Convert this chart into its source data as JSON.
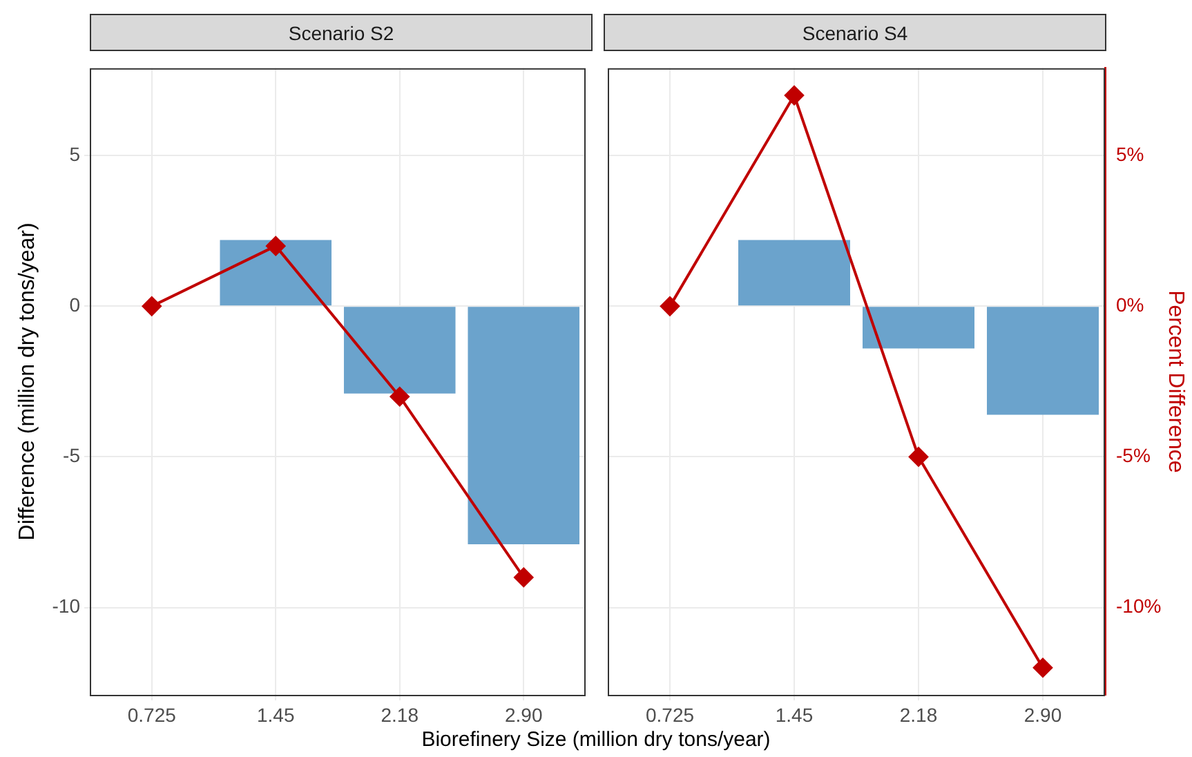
{
  "chart_data": [
    {
      "type": "bar",
      "title": "Scenario S2",
      "categories": [
        "0.725",
        "1.45",
        "2.18",
        "2.90"
      ],
      "xlabel": "Biorefinery Size (million dry tons/year)",
      "ylabel": "Difference (million dry tons/year)",
      "series": [
        {
          "color": "#6ba3cc",
          "values": [
            0,
            2.2,
            -2.9,
            -7.9
          ]
        },
        {
          "type": "line",
          "color": "#c00000",
          "values": [
            0,
            2.0,
            -3.0,
            -9.0
          ]
        }
      ],
      "ylim": [
        -12.9,
        7.9
      ],
      "yticks": [
        5,
        0,
        -5,
        -10
      ],
      "tick_labels": [
        "x",
        "y"
      ],
      "grid": true,
      "marker": "diamond",
      "line_style": "solid"
    },
    {
      "type": "bar",
      "title": "Scenario S4",
      "categories": [
        "0.725",
        "1.45",
        "2.18",
        "2.90"
      ],
      "y2label": "Percent Difference",
      "series": [
        {
          "color": "#6ba3cc",
          "values": [
            0,
            2.2,
            -1.4,
            -3.6
          ]
        },
        {
          "type": "line",
          "color": "#c00000",
          "values": [
            0,
            7.0,
            -5.0,
            -12.0
          ]
        }
      ],
      "ylim": [
        -12.9,
        7.9
      ],
      "y2lim": [
        -12.9,
        7.9
      ],
      "y2ticks": [
        {
          "value": 5,
          "label": "5%"
        },
        {
          "value": 0,
          "label": "0%"
        },
        {
          "value": -5,
          "label": "-5%"
        },
        {
          "value": -10,
          "label": "-10%"
        }
      ],
      "tick_labels": [
        "x",
        "y2"
      ],
      "grid": true,
      "marker": "diamond",
      "line_style": "solid"
    }
  ]
}
